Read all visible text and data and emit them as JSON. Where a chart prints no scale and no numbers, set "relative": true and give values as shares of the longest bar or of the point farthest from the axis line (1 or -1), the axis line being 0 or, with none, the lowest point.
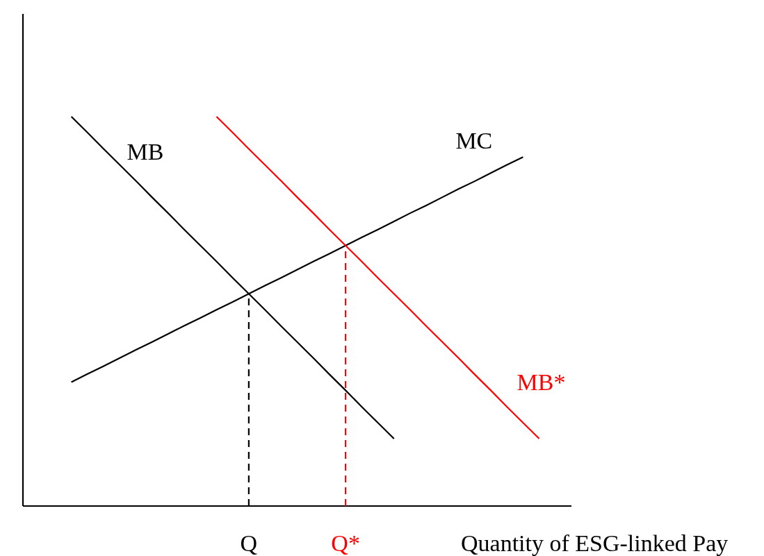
{
  "chart_data": {
    "type": "line",
    "relative": true,
    "xlabel": "Quantity of ESG-linked Pay",
    "categories": [
      null,
      null,
      null,
      null,
      null,
      null,
      null,
      null,
      null,
      null,
      null,
      null,
      null,
      null,
      "Q",
      null,
      null,
      null,
      null,
      null,
      "Q*",
      null,
      null,
      null,
      null,
      null,
      null,
      null,
      null,
      null,
      null,
      null,
      null,
      null,
      null
    ],
    "ref_lines": [
      {
        "axis": "x",
        "value": "Q",
        "color": "#000000",
        "line_style": "dashed"
      },
      {
        "axis": "x",
        "value": "Q*",
        "color": "#ff0000",
        "line_style": "dashed"
      }
    ],
    "series": [
      {
        "name": "MB",
        "color": "#000000",
        "values": [
          null,
          null,
          null,
          1.0,
          0.959,
          0.917,
          0.876,
          0.835,
          0.793,
          0.752,
          0.71,
          0.669,
          0.628,
          0.586,
          0.545,
          0.504,
          0.462,
          0.421,
          0.38,
          0.338,
          0.297,
          0.255,
          0.214,
          0.173,
          null,
          null,
          null,
          null,
          null,
          null,
          null,
          null,
          null,
          null,
          null
        ]
      },
      {
        "name": "MC",
        "color": "#000000",
        "values": [
          null,
          null,
          null,
          0.318,
          0.339,
          0.359,
          0.38,
          0.401,
          0.421,
          0.442,
          0.463,
          0.483,
          0.504,
          0.524,
          0.545,
          0.566,
          0.586,
          0.607,
          0.628,
          0.648,
          0.669,
          0.69,
          0.71,
          0.731,
          0.752,
          0.772,
          0.793,
          0.814,
          0.834,
          0.855,
          0.876,
          0.896,
          null,
          null,
          null
        ]
      },
      {
        "name": "MB*",
        "color": "#ff0000",
        "values": [
          null,
          null,
          null,
          null,
          null,
          null,
          null,
          null,
          null,
          null,
          null,
          null,
          1.0,
          0.959,
          0.917,
          0.876,
          0.835,
          0.793,
          0.752,
          0.71,
          0.669,
          0.628,
          0.586,
          0.545,
          0.504,
          0.462,
          0.421,
          0.38,
          0.338,
          0.297,
          0.255,
          0.214,
          0.173,
          null,
          null
        ]
      }
    ]
  }
}
